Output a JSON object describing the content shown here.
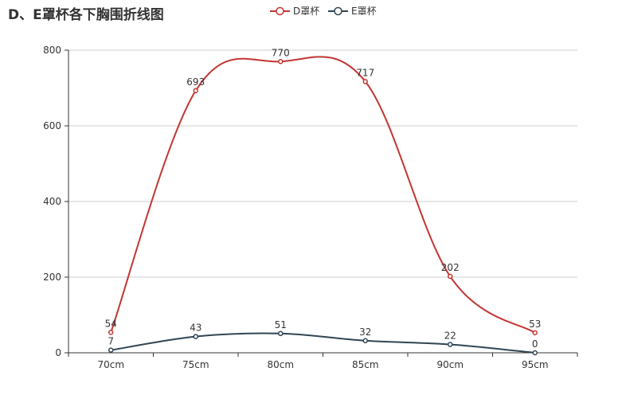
{
  "chart_data": {
    "type": "line",
    "title": "D、E罩杯各下胸围折线图",
    "categories": [
      "70cm",
      "75cm",
      "80cm",
      "85cm",
      "90cm",
      "95cm"
    ],
    "series": [
      {
        "name": "D罩杯",
        "values": [
          54,
          693,
          770,
          717,
          202,
          53
        ],
        "color": "#c23531"
      },
      {
        "name": "E罩杯",
        "values": [
          7,
          43,
          51,
          32,
          22,
          0
        ],
        "color": "#2f4554"
      }
    ],
    "ylim": [
      0,
      800
    ],
    "yticks": [
      0,
      200,
      400,
      600,
      800
    ],
    "grid": true,
    "smooth": true,
    "legend_position": "top-center"
  }
}
